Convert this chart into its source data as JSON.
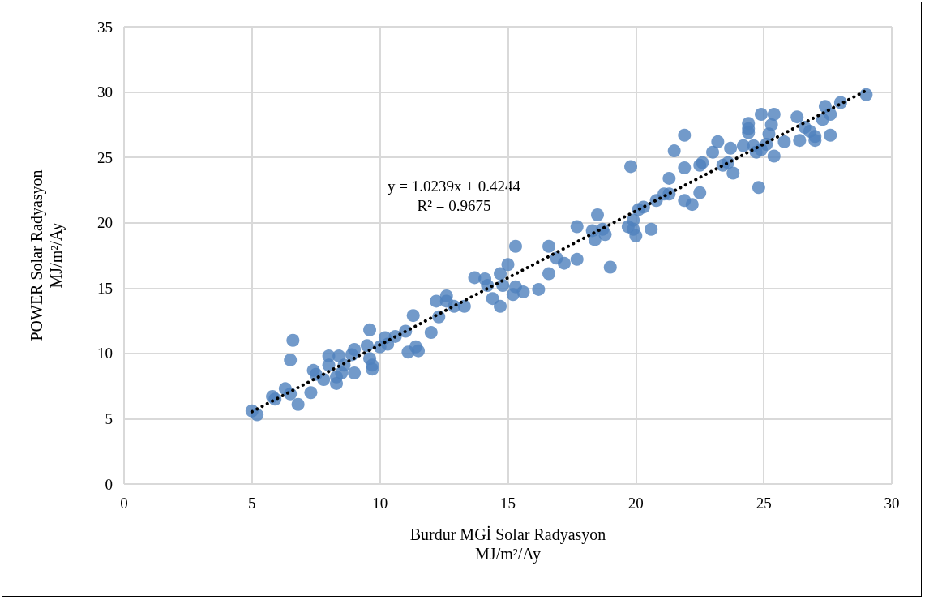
{
  "chart_data": {
    "type": "scatter",
    "xlabel": "Burdur MGİ Solar Radyasyon\nMJ/m²/Ay",
    "ylabel": "POWER Solar Radyasyon\nMJ/m²/Ay",
    "xlim": [
      0,
      30
    ],
    "xticks": [
      0,
      5,
      10,
      15,
      20,
      25,
      30
    ],
    "ylim": [
      0,
      35
    ],
    "yticks": [
      0,
      5,
      10,
      15,
      20,
      25,
      30,
      35
    ],
    "grid": true,
    "marker": "circle",
    "annotations": [
      "y = 1.0239x + 0.4244",
      "R² = 0.9675"
    ],
    "series": [
      {
        "color": "#4f81bd",
        "x": [
          5.0,
          5.2,
          5.8,
          5.9,
          6.3,
          6.5,
          6.5,
          6.6,
          6.8,
          7.3,
          7.4,
          7.5,
          7.8,
          8.0,
          8.0,
          8.3,
          8.3,
          8.4,
          8.5,
          8.6,
          8.9,
          9.0,
          9.0,
          9.5,
          9.6,
          9.6,
          9.7,
          9.7,
          10.0,
          10.2,
          10.3,
          10.6,
          11.0,
          11.1,
          11.3,
          11.4,
          11.5,
          12.0,
          12.2,
          12.3,
          12.6,
          12.6,
          12.9,
          13.3,
          13.7,
          14.1,
          14.2,
          14.4,
          14.7,
          14.7,
          14.8,
          15.0,
          15.2,
          15.3,
          15.3,
          15.6,
          16.2,
          16.6,
          16.6,
          16.9,
          17.2,
          17.7,
          17.7,
          18.3,
          18.4,
          18.5,
          18.7,
          18.8,
          19.0,
          19.8,
          19.7,
          19.9,
          19.9,
          20.0,
          20.1,
          20.3,
          20.6,
          20.8,
          21.1,
          21.3,
          21.3,
          21.5,
          21.9,
          21.9,
          21.9,
          22.2,
          22.5,
          22.5,
          22.6,
          23.0,
          23.2,
          23.4,
          23.6,
          23.7,
          23.8,
          24.2,
          24.4,
          24.4,
          24.4,
          24.6,
          24.7,
          24.8,
          24.9,
          24.9,
          25.1,
          25.2,
          25.3,
          25.4,
          25.4,
          25.8,
          26.3,
          26.4,
          26.6,
          26.8,
          27.0,
          27.0,
          27.3,
          27.4,
          27.6,
          27.6,
          28.0,
          29.0
        ],
        "values": [
          5.6,
          5.3,
          6.7,
          6.5,
          7.3,
          6.9,
          9.5,
          11.0,
          6.1,
          7.0,
          8.7,
          8.4,
          8.0,
          9.8,
          9.1,
          8.2,
          7.7,
          9.8,
          8.5,
          9.1,
          9.9,
          8.5,
          10.3,
          10.6,
          11.8,
          9.6,
          9.1,
          8.8,
          10.5,
          11.2,
          10.7,
          11.3,
          11.7,
          10.1,
          12.9,
          10.5,
          10.2,
          11.6,
          14.0,
          12.8,
          14.4,
          14.0,
          13.6,
          13.6,
          15.8,
          15.7,
          15.2,
          14.2,
          13.6,
          16.1,
          15.2,
          16.8,
          14.5,
          15.1,
          18.2,
          14.7,
          14.9,
          18.2,
          16.1,
          17.3,
          16.9,
          19.7,
          17.2,
          19.4,
          18.7,
          20.6,
          19.5,
          19.1,
          16.6,
          24.3,
          19.7,
          19.5,
          20.2,
          19.0,
          21.0,
          21.2,
          19.5,
          21.7,
          22.2,
          22.2,
          23.4,
          25.5,
          24.2,
          26.7,
          21.7,
          21.4,
          22.3,
          24.4,
          24.6,
          25.4,
          26.2,
          24.4,
          24.6,
          25.7,
          23.8,
          25.9,
          26.9,
          27.6,
          27.2,
          25.9,
          25.4,
          22.7,
          28.3,
          25.6,
          26.0,
          26.8,
          27.5,
          28.3,
          25.1,
          26.2,
          28.1,
          26.3,
          27.3,
          27.0,
          26.6,
          26.3,
          27.9,
          28.9,
          28.3,
          26.7,
          29.2,
          29.8
        ]
      },
      {
        "type": "line",
        "color": "#000000",
        "line_style": "dotted",
        "marker": "none",
        "x": [
          5,
          29
        ],
        "values": [
          5.54,
          30.12
        ]
      }
    ]
  }
}
